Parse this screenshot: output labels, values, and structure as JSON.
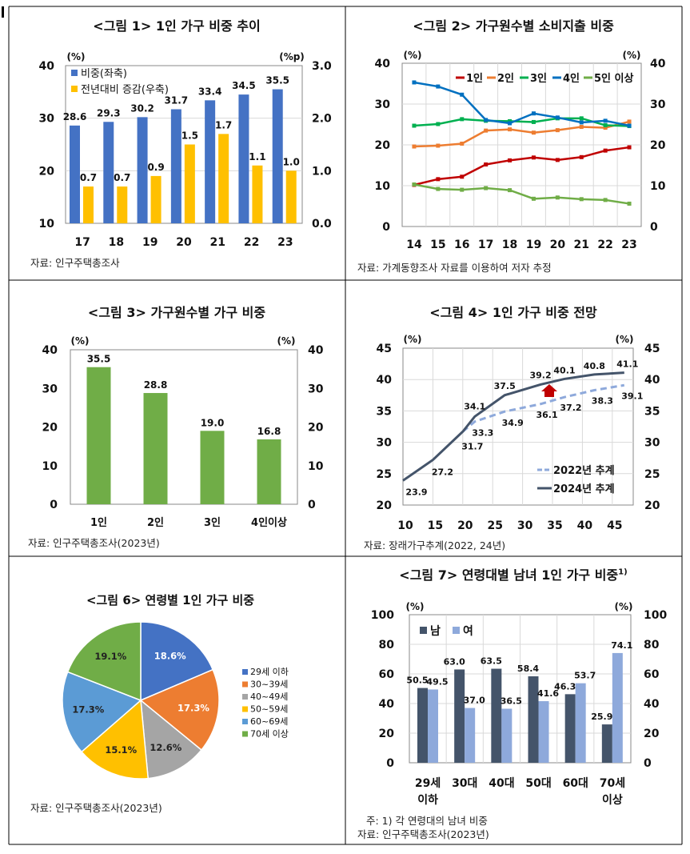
{
  "chart_data": [
    {
      "type": "bar",
      "title": "<그림 1> 1인 가구 비중 추이",
      "categories": [
        "17",
        "18",
        "19",
        "20",
        "21",
        "22",
        "23"
      ],
      "ylabel": "(%)",
      "y2label": "(%p)",
      "ylim": [
        10,
        40
      ],
      "y2lim": [
        0,
        3.0
      ],
      "yticks": [
        "40",
        "30",
        "20",
        "10"
      ],
      "y2ticks": [
        "3.0",
        "2.0",
        "1.0",
        "0.0"
      ],
      "grid": true,
      "legend": "top-left",
      "series": [
        {
          "name": "비중(좌축)",
          "axis": "left",
          "color": "#4472C4",
          "values": [
            28.6,
            29.3,
            30.2,
            31.7,
            33.4,
            34.5,
            35.5
          ],
          "labels": [
            "28.6",
            "29.3",
            "30.2",
            "31.7",
            "33.4",
            "34.5",
            "35.5"
          ]
        },
        {
          "name": "전년대비 증감(우축)",
          "axis": "right",
          "color": "#FFC000",
          "values": [
            0.7,
            0.7,
            0.9,
            1.5,
            1.7,
            1.1,
            1.0
          ],
          "labels": [
            "0.7",
            "0.7",
            "0.9",
            "1.5",
            "1.7",
            "1.1",
            "1.0"
          ]
        }
      ],
      "source": "자료:  인구주택총조사"
    },
    {
      "type": "line",
      "title": "<그림 2> 가구원수별 소비지출 비중",
      "categories": [
        "14",
        "15",
        "16",
        "17",
        "18",
        "19",
        "20",
        "21",
        "22",
        "23"
      ],
      "ylabel": "(%)",
      "y2label": "(%)",
      "ylim": [
        0,
        40
      ],
      "yticks": [
        "40",
        "30",
        "20",
        "10",
        "0"
      ],
      "grid": true,
      "legend": "top-right",
      "series": [
        {
          "name": "1인",
          "color": "#C00000",
          "values": [
            10.2,
            11.6,
            12.2,
            15.2,
            16.2,
            16.9,
            16.3,
            17.0,
            18.6,
            19.4
          ]
        },
        {
          "name": "2인",
          "color": "#ED7D31",
          "values": [
            19.6,
            19.8,
            20.3,
            23.5,
            23.8,
            23.0,
            23.6,
            24.4,
            24.2,
            25.7
          ]
        },
        {
          "name": "3인",
          "color": "#00B050",
          "values": [
            24.7,
            25.1,
            26.3,
            25.9,
            25.8,
            25.6,
            26.5,
            26.5,
            24.8,
            24.6
          ]
        },
        {
          "name": "4인",
          "color": "#0070C0",
          "values": [
            35.3,
            34.3,
            32.3,
            26.1,
            25.3,
            27.7,
            26.7,
            25.5,
            25.9,
            24.7
          ]
        },
        {
          "name": "5인 이상",
          "color": "#70AD47",
          "values": [
            10.3,
            9.2,
            9.0,
            9.4,
            8.9,
            6.8,
            7.1,
            6.7,
            6.5,
            5.6
          ]
        }
      ],
      "source": "자료:  가계동향조사 자료를 이용하여 저자 추정"
    },
    {
      "type": "bar",
      "title": "<그림 3> 가구원수별 가구 비중",
      "categories": [
        "1인",
        "2인",
        "3인",
        "4인이상"
      ],
      "ylabel": "(%)",
      "y2label": "(%)",
      "ylim": [
        0,
        40
      ],
      "yticks": [
        "40",
        "30",
        "20",
        "10",
        "0"
      ],
      "grid": false,
      "series": [
        {
          "color": "#70AD47",
          "values": [
            35.5,
            28.8,
            19.0,
            16.8
          ],
          "labels": [
            "35.5",
            "28.8",
            "19.0",
            "16.8"
          ]
        }
      ],
      "source": "자료:  인구주택총조사(2023년)"
    },
    {
      "type": "line",
      "title": "<그림 4> 1인 가구 비중 전망",
      "ylabel": "(%)",
      "y2label": "(%)",
      "xlim": [
        10,
        48.5
      ],
      "ylim": [
        20,
        45
      ],
      "xticks": [
        "10",
        "15",
        "20",
        "25",
        "30",
        "35",
        "40",
        "45"
      ],
      "yticks": [
        "45",
        "40",
        "35",
        "30",
        "25",
        "20"
      ],
      "grid": true,
      "legend": "bottom-right",
      "series": [
        {
          "name": "2022년 추계",
          "color": "#8EA9DB",
          "dash": true,
          "x": [
            20,
            22,
            27,
            33,
            37,
            42,
            47
          ],
          "y": [
            31.7,
            33.3,
            34.9,
            36.1,
            37.2,
            38.3,
            39.1
          ],
          "labels": [
            "",
            "33.3",
            "34.9",
            "36.1",
            "37.2",
            "38.3",
            "39.1"
          ]
        },
        {
          "name": "2024년 추계",
          "color": "#44546A",
          "dash": false,
          "x": [
            10,
            15,
            20,
            22,
            27,
            33,
            37,
            42,
            47
          ],
          "y": [
            23.9,
            27.2,
            31.7,
            34.1,
            37.5,
            39.2,
            40.1,
            40.8,
            41.1
          ],
          "labels": [
            "23.9",
            "27.2",
            "31.7",
            "34.1",
            "37.5",
            "39.2",
            "40.1",
            "40.8",
            "41.1"
          ]
        }
      ],
      "annotation": {
        "icon": "up-arrow-icon",
        "color": "#C00000"
      },
      "source": "자료:  장래가구추계(2022, 24년)"
    },
    {
      "type": "pie",
      "title": "<그림 6> 연령별 1인 가구 비중",
      "legend": "right",
      "categories": [
        "29세 이하",
        "30~39세",
        "40~49세",
        "50~59세",
        "60~69세",
        "70세 이상"
      ],
      "values": [
        18.6,
        17.3,
        12.6,
        15.1,
        17.3,
        19.1
      ],
      "labels": [
        "18.6%",
        "17.3%",
        "12.6%",
        "15.1%",
        "17.3%",
        "19.1%"
      ],
      "colors": [
        "#4472C4",
        "#ED7D31",
        "#A5A5A5",
        "#FFC000",
        "#5B9BD5",
        "#70AD47"
      ],
      "source": "자료:  인구주택총조사(2023년)"
    },
    {
      "type": "bar",
      "title": "<그림 7> 연령대별 남녀 1인 가구 비중",
      "title_sup": "1)",
      "categories": [
        [
          "29세",
          "이하"
        ],
        [
          "30대"
        ],
        [
          "40대"
        ],
        [
          "50대"
        ],
        [
          "60대"
        ],
        [
          "70세",
          "이상"
        ]
      ],
      "ylabel": "(%)",
      "y2label": "(%)",
      "ylim": [
        0,
        100
      ],
      "yticks": [
        "100",
        "80",
        "60",
        "40",
        "20",
        "0"
      ],
      "grid": true,
      "legend": "top-left",
      "series": [
        {
          "name": "남",
          "color": "#44546A",
          "values": [
            50.5,
            63.0,
            63.5,
            58.4,
            46.3,
            25.9
          ],
          "labels": [
            "50.5",
            "63.0",
            "63.5",
            "58.4",
            "46.3",
            "25.9"
          ]
        },
        {
          "name": "여",
          "color": "#8EA9DB",
          "values": [
            49.5,
            37.0,
            36.5,
            41.6,
            53.7,
            74.1
          ],
          "labels": [
            "49.5",
            "37.0",
            "36.5",
            "41.6",
            "53.7",
            "74.1"
          ]
        }
      ],
      "note": "주:  1) 각 연령대의 남녀 비중",
      "source": "자료:  인구주택총조사(2023년)"
    }
  ]
}
